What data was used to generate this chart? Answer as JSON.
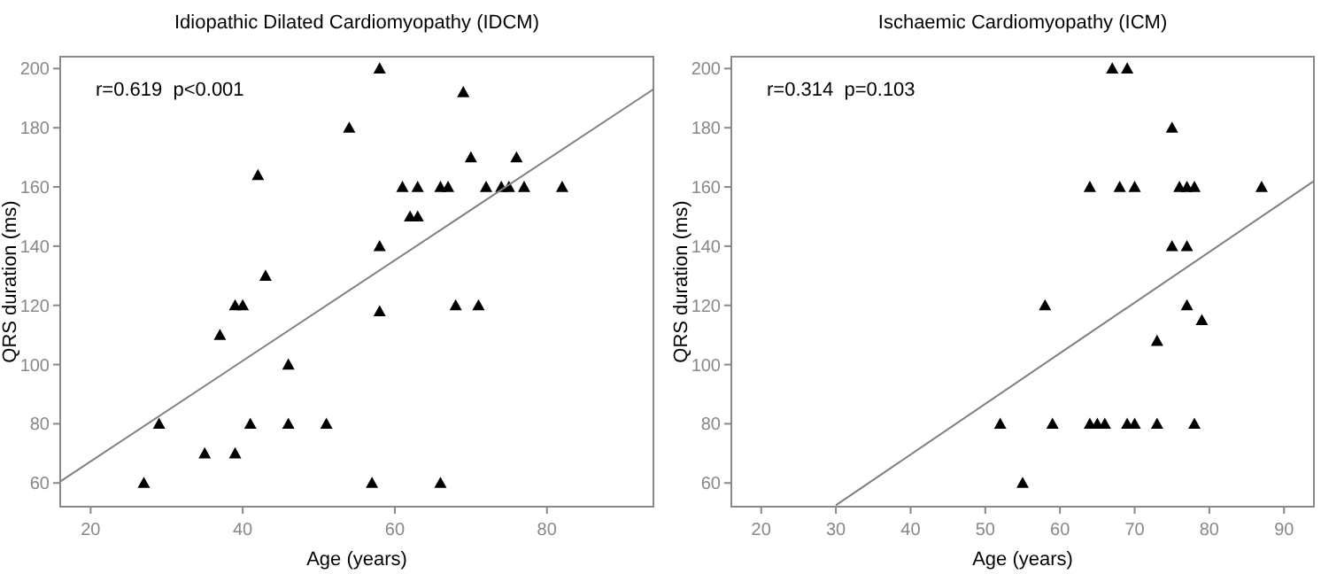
{
  "chart_data": [
    {
      "type": "scatter",
      "title": "Idiopathic Dilated Cardiomyopathy (IDCM)",
      "xlabel": "Age (years)",
      "ylabel": "QRS duration (ms)",
      "xlim": [
        16,
        94
      ],
      "ylim": [
        52,
        204
      ],
      "xticks": [
        20,
        40,
        60,
        80
      ],
      "yticks": [
        60,
        80,
        100,
        120,
        140,
        160,
        180,
        200
      ],
      "annotations": [
        "r=0.619  p<0.001"
      ],
      "series": [
        {
          "type": "scatter",
          "marker": "triangle",
          "color": "#000000",
          "x": [
            58,
            69,
            54,
            42,
            70,
            76,
            61,
            63,
            66,
            67,
            72,
            74,
            75,
            77,
            82,
            62,
            63,
            58,
            43,
            39,
            40,
            58,
            68,
            71,
            37,
            46,
            29,
            41,
            46,
            51,
            35,
            39,
            27,
            57,
            66
          ],
          "values": [
            200,
            192,
            180,
            164,
            170,
            170,
            160,
            160,
            160,
            160,
            160,
            160,
            160,
            160,
            160,
            150,
            150,
            140,
            130,
            120,
            120,
            118,
            120,
            120,
            110,
            100,
            80,
            80,
            80,
            80,
            70,
            70,
            60,
            60,
            60
          ]
        },
        {
          "type": "line",
          "color": "#808080",
          "x": [
            16,
            94
          ],
          "values": [
            60.5,
            193
          ]
        }
      ]
    },
    {
      "type": "scatter",
      "title": "Ischaemic Cardiomyopathy (ICM)",
      "xlabel": "Age (years)",
      "ylabel": "QRS duration (ms)",
      "xlim": [
        16,
        94
      ],
      "ylim": [
        52,
        204
      ],
      "xticks": [
        20,
        30,
        40,
        50,
        60,
        70,
        80,
        90
      ],
      "yticks": [
        60,
        80,
        100,
        120,
        140,
        160,
        180,
        200
      ],
      "annotations": [
        "r=0.314  p=0.103"
      ],
      "series": [
        {
          "type": "scatter",
          "marker": "triangle",
          "color": "#000000",
          "x": [
            67,
            69,
            75,
            64,
            68,
            70,
            76,
            77,
            78,
            87,
            75,
            77,
            58,
            77,
            79,
            73,
            52,
            59,
            64,
            65,
            66,
            69,
            70,
            73,
            78,
            55
          ],
          "values": [
            200,
            200,
            180,
            160,
            160,
            160,
            160,
            160,
            160,
            160,
            140,
            140,
            120,
            120,
            115,
            108,
            80,
            80,
            80,
            80,
            80,
            80,
            80,
            80,
            80,
            60
          ]
        },
        {
          "type": "line",
          "color": "#808080",
          "x": [
            30,
            94
          ],
          "values": [
            52.5,
            162
          ]
        }
      ]
    }
  ]
}
